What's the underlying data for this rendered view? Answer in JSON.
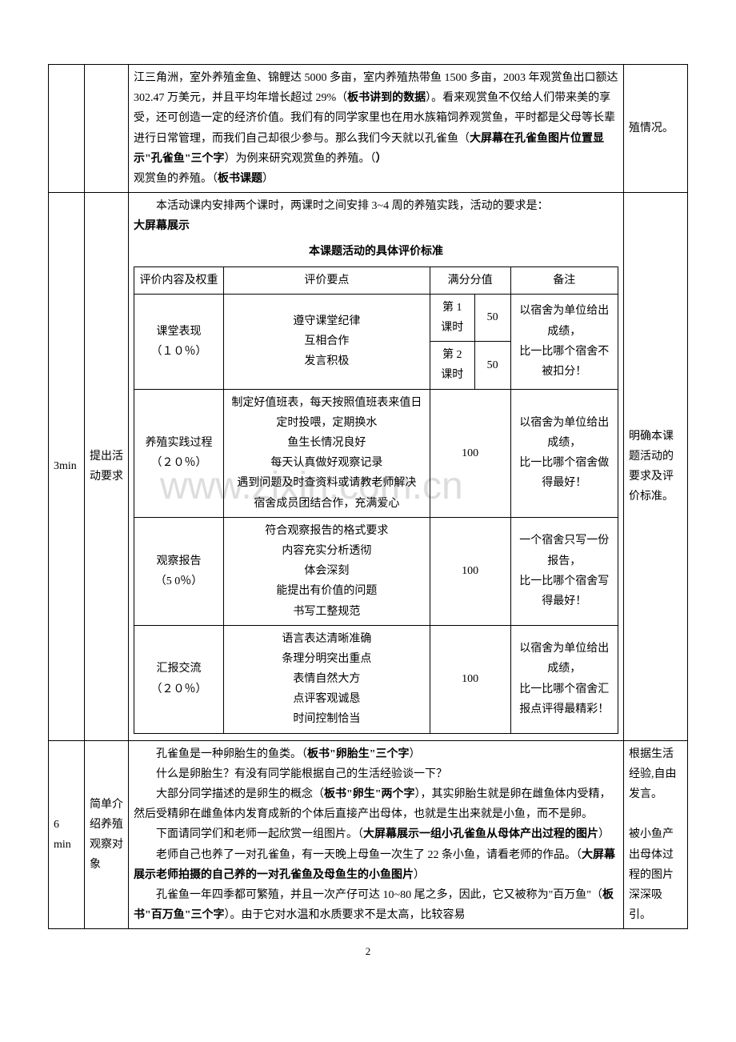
{
  "row1": {
    "content_p1_a": "江三角洲，室外养殖金鱼、锦鲤达 5000 多亩，室内养殖热带鱼 1500 多亩，2003 年观赏鱼出口额达 302.47 万美元，并且平均年增长超过 29%（",
    "content_p1_bold": "板书讲到的数据",
    "content_p1_b": "）。看来观赏鱼不仅给人们带来美的享受，还可创造一定的经济价值。我们有的同学家里也在用水族箱饲养观赏鱼，平时都是父母等长辈进行日常管理，而我们自己却很少参与。那么我们今天就以孔雀鱼（",
    "content_p1_bold2": "大屏幕在孔雀鱼图片位置显示\"孔雀鱼\"三个字",
    "content_p1_c": "）为例来研究观赏鱼的养殖。（",
    "content_p1_bold3": "板书课题",
    "content_p1_d": "）",
    "note": "殖情况。"
  },
  "row2": {
    "time": "3min",
    "label": "提出活动要求",
    "intro": "本活动课内安排两个课时，两课时之间安排 3~4 周的养殖实践，活动的要求是：",
    "screen": "大屏幕展示",
    "heading": "本课题活动的具体评价标准",
    "table": {
      "headers": [
        "评价内容及权重",
        "评价要点",
        "满分分值",
        "备注"
      ],
      "rows": [
        {
          "item": "课堂表现\n（１０％）",
          "points": "遵守课堂纪律\n互相合作\n发言积极",
          "score1_label": "第 1\n课时",
          "score1_val": "50",
          "score2_label": "第 2\n课时",
          "score2_val": "50",
          "note": "以宿舍为单位给出成绩，\n比一比哪个宿舍不被扣分！"
        },
        {
          "item": "养殖实践过程\n（２０％）",
          "points": "制定好值班表，每天按照值班表来值日\n定时投喂，定期换水\n鱼生长情况良好\n每天认真做好观察记录\n遇到问题及时查资料或请教老师解决\n宿舍成员团结合作，充满爱心",
          "score": "100",
          "note": "以宿舍为单位给出成绩，\n比一比哪个宿舍做得最好！"
        },
        {
          "item": "观察报告\n（5 0％）",
          "points": "符合观察报告的格式要求\n内容充实分析透彻\n体会深刻\n能提出有价值的问题\n书写工整规范",
          "score": "100",
          "note": "一个宿舍只写一份报告，\n比一比哪个宿舍写得最好！"
        },
        {
          "item": "汇报交流\n（２０％）",
          "points": "语言表达清晰准确\n条理分明突出重点\n表情自然大方\n点评客观诚恳\n时间控制恰当",
          "score": "100",
          "note": "以宿舍为单位给出成绩，\n比一比哪个宿舍汇报点评得最精彩！"
        }
      ]
    },
    "note": "明确本课题活动的要求及评价标准。"
  },
  "row3": {
    "time": "6 min",
    "label": "简单介绍养殖观察对象",
    "p1_a": "孔雀鱼是一种卵胎生的鱼类。（",
    "p1_bold": "板书\"卵胎生\"三个字",
    "p1_b": "）",
    "p2": "什么是卵胎生？有没有同学能根据自己的生活经验谈一下？",
    "p3_a": "大部分同学描述的是卵生的概念（",
    "p3_bold": "板书\"卵生\"两个字",
    "p3_b": "），其实卵胎生就是卵在雌鱼体内受精，然后受精卵在雌鱼体内发育成新的个体后直接产出母体，也就是生出来就是小鱼，而不是卵。",
    "p4_a": "下面请同学们和老师一起欣赏一组图片。（",
    "p4_bold": "大屏幕展示一组小孔雀鱼从母体产出过程的图片",
    "p4_b": "）",
    "p5_a": "老师自己也养了一对孔雀鱼，有一天晚上母鱼一次生了 22 条小鱼，请看老师的作品。（",
    "p5_bold": "大屏幕展示老师拍摄的自己养的一对孔雀鱼及母鱼生的小鱼图片",
    "p5_b": "）",
    "p6_a": "孔雀鱼一年四季都可繁殖，并且一次产仔可达 10~80 尾之多，因此，它又被称为\"百万鱼\"（",
    "p6_bold": "板书\"百万鱼\"三个字",
    "p6_b": "）。由于它对水温和水质要求不是太高，比较容易",
    "note": "根据生活经验,自由发言。\n\n被小鱼产出母体过程的图片深深吸引。"
  },
  "page_number": "2",
  "watermark": "www.zixin.com.cn"
}
